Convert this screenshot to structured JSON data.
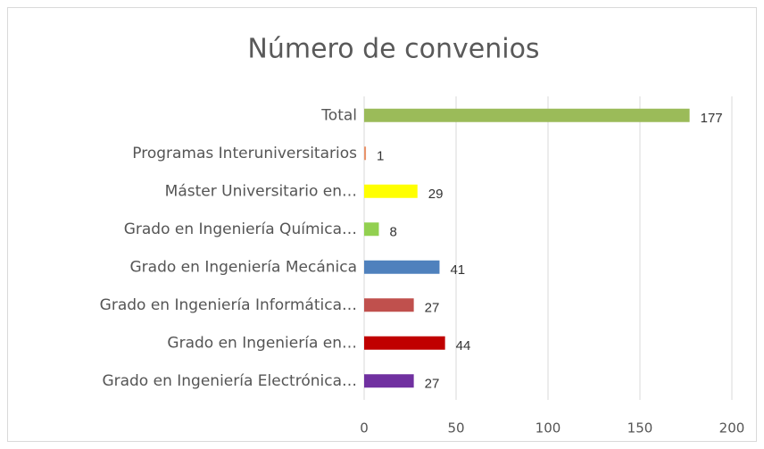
{
  "chart_data": {
    "type": "barh",
    "title": "Número de convenios",
    "categories": [
      "Total",
      "Programas Interuniversitarios",
      "Máster Universitario en…",
      "Grado en Ingeniería Química…",
      "Grado en Ingeniería Mecánica",
      "Grado en Ingeniería Informática…",
      "Grado en Ingeniería en…",
      "Grado en Ingeniería Electrónica…"
    ],
    "values": [
      177,
      1,
      29,
      8,
      41,
      27,
      44,
      27
    ],
    "colors": [
      "#9bbb59",
      "#e8936b",
      "#ffff00",
      "#92d050",
      "#4f81bd",
      "#c0504d",
      "#c00000",
      "#7030a0"
    ],
    "xlim": [
      0,
      200
    ],
    "xticks": [
      0,
      50,
      100,
      150,
      200
    ],
    "grid": true
  }
}
